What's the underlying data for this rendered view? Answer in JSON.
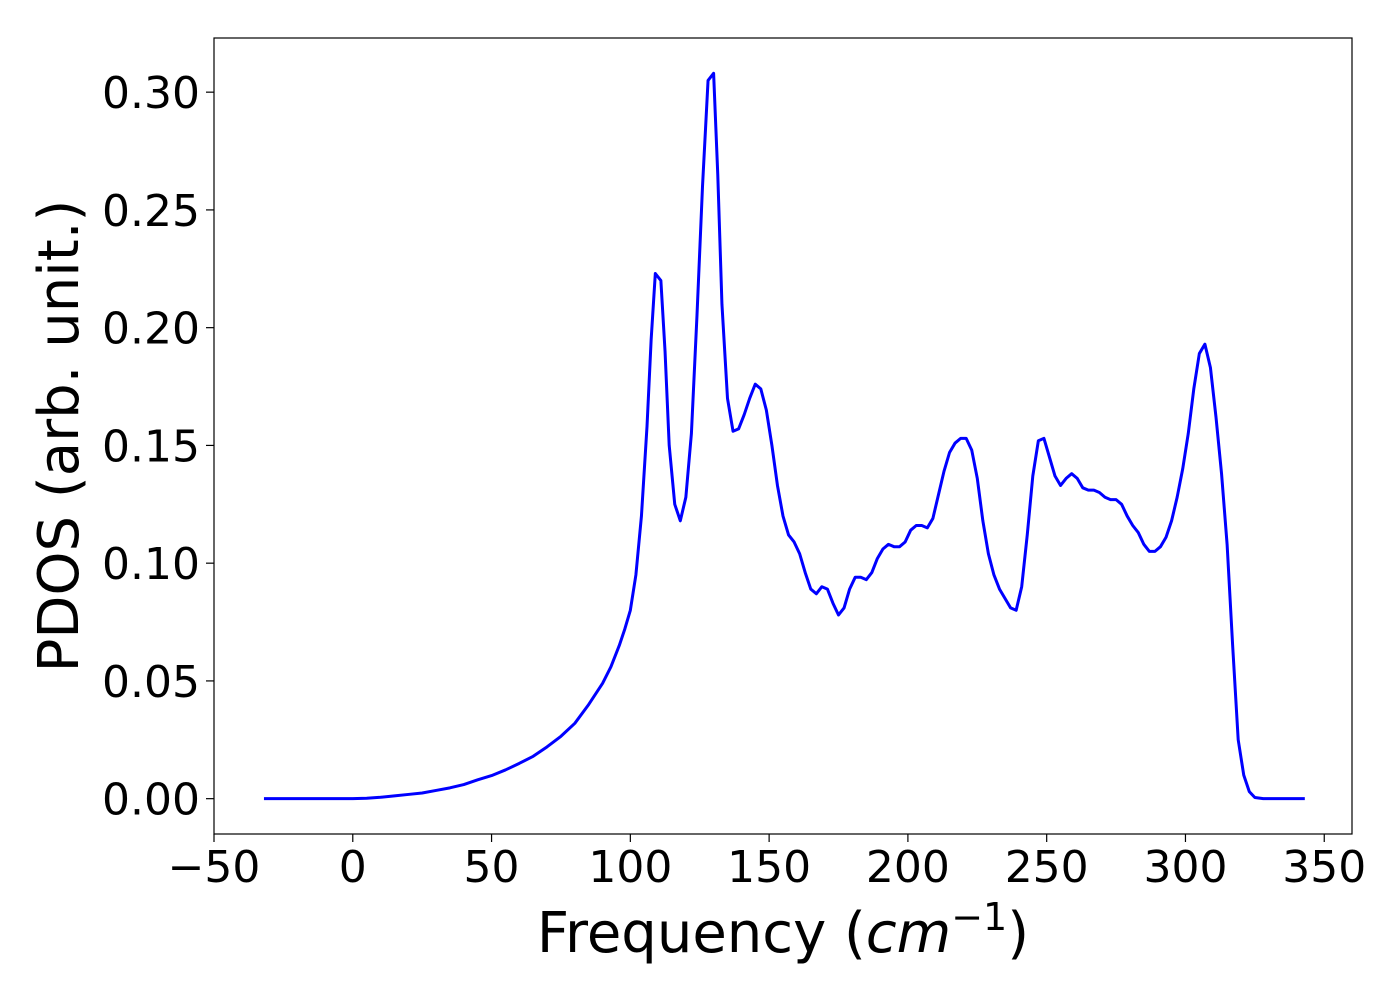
{
  "chart_data": {
    "type": "line",
    "xlabel": {
      "prefix": "Frequency (",
      "var": "cm",
      "sup": "−1",
      "suffix": ")"
    },
    "ylabel": "PDOS (arb. unit.)",
    "xlim": [
      -50,
      360
    ],
    "ylim": [
      -0.015,
      0.323
    ],
    "x_ticks": [
      -50,
      0,
      50,
      100,
      150,
      200,
      250,
      300,
      350
    ],
    "x_tick_labels": [
      "−50",
      "0",
      "50",
      "100",
      "150",
      "200",
      "250",
      "300",
      "350"
    ],
    "y_ticks": [
      0.0,
      0.05,
      0.1,
      0.15,
      0.2,
      0.25,
      0.3
    ],
    "y_tick_labels": [
      "0.00",
      "0.05",
      "0.10",
      "0.15",
      "0.20",
      "0.25",
      "0.30"
    ],
    "grid": false,
    "series": [
      {
        "color": "#0000ff",
        "points": [
          [
            -32,
            0.0
          ],
          [
            -20,
            0.0
          ],
          [
            -10,
            0.0
          ],
          [
            0,
            0.0
          ],
          [
            5,
            0.0002
          ],
          [
            10,
            0.0006
          ],
          [
            15,
            0.0012
          ],
          [
            20,
            0.0018
          ],
          [
            25,
            0.0024
          ],
          [
            30,
            0.0035
          ],
          [
            35,
            0.0046
          ],
          [
            40,
            0.006
          ],
          [
            45,
            0.008
          ],
          [
            50,
            0.0098
          ],
          [
            55,
            0.0122
          ],
          [
            60,
            0.015
          ],
          [
            65,
            0.018
          ],
          [
            70,
            0.022
          ],
          [
            75,
            0.0265
          ],
          [
            80,
            0.032
          ],
          [
            85,
            0.04
          ],
          [
            90,
            0.049
          ],
          [
            93,
            0.056
          ],
          [
            96,
            0.065
          ],
          [
            98,
            0.072
          ],
          [
            100,
            0.08
          ],
          [
            102,
            0.095
          ],
          [
            104,
            0.12
          ],
          [
            106,
            0.158
          ],
          [
            107.5,
            0.195
          ],
          [
            109,
            0.223
          ],
          [
            111,
            0.22
          ],
          [
            112.5,
            0.19
          ],
          [
            114,
            0.15
          ],
          [
            116,
            0.125
          ],
          [
            118,
            0.118
          ],
          [
            120,
            0.128
          ],
          [
            122,
            0.155
          ],
          [
            124,
            0.205
          ],
          [
            126,
            0.26
          ],
          [
            128,
            0.305
          ],
          [
            130,
            0.308
          ],
          [
            131.5,
            0.265
          ],
          [
            133,
            0.21
          ],
          [
            135,
            0.17
          ],
          [
            137,
            0.156
          ],
          [
            139,
            0.157
          ],
          [
            141,
            0.163
          ],
          [
            143,
            0.17
          ],
          [
            145,
            0.176
          ],
          [
            147,
            0.174
          ],
          [
            149,
            0.165
          ],
          [
            151,
            0.15
          ],
          [
            153,
            0.133
          ],
          [
            155,
            0.12
          ],
          [
            157,
            0.112
          ],
          [
            159,
            0.109
          ],
          [
            161,
            0.104
          ],
          [
            163,
            0.096
          ],
          [
            165,
            0.089
          ],
          [
            167,
            0.087
          ],
          [
            169,
            0.09
          ],
          [
            171,
            0.089
          ],
          [
            173,
            0.083
          ],
          [
            175,
            0.078
          ],
          [
            177,
            0.081
          ],
          [
            179,
            0.089
          ],
          [
            181,
            0.094
          ],
          [
            183,
            0.094
          ],
          [
            185,
            0.093
          ],
          [
            187,
            0.096
          ],
          [
            189,
            0.102
          ],
          [
            191,
            0.106
          ],
          [
            193,
            0.108
          ],
          [
            195,
            0.107
          ],
          [
            197,
            0.107
          ],
          [
            199,
            0.109
          ],
          [
            201,
            0.114
          ],
          [
            203,
            0.116
          ],
          [
            205,
            0.116
          ],
          [
            207,
            0.115
          ],
          [
            209,
            0.119
          ],
          [
            211,
            0.129
          ],
          [
            213,
            0.139
          ],
          [
            215,
            0.147
          ],
          [
            217,
            0.151
          ],
          [
            219,
            0.153
          ],
          [
            221,
            0.153
          ],
          [
            223,
            0.148
          ],
          [
            225,
            0.136
          ],
          [
            227,
            0.118
          ],
          [
            229,
            0.104
          ],
          [
            231,
            0.095
          ],
          [
            233,
            0.089
          ],
          [
            235,
            0.085
          ],
          [
            237,
            0.081
          ],
          [
            239,
            0.08
          ],
          [
            241,
            0.09
          ],
          [
            243,
            0.112
          ],
          [
            245,
            0.137
          ],
          [
            247,
            0.152
          ],
          [
            249,
            0.153
          ],
          [
            251,
            0.145
          ],
          [
            253,
            0.137
          ],
          [
            255,
            0.133
          ],
          [
            257,
            0.136
          ],
          [
            259,
            0.138
          ],
          [
            261,
            0.136
          ],
          [
            263,
            0.132
          ],
          [
            265,
            0.131
          ],
          [
            267,
            0.131
          ],
          [
            269,
            0.13
          ],
          [
            271,
            0.128
          ],
          [
            273,
            0.127
          ],
          [
            275,
            0.127
          ],
          [
            277,
            0.125
          ],
          [
            279,
            0.12
          ],
          [
            281,
            0.116
          ],
          [
            283,
            0.113
          ],
          [
            285,
            0.108
          ],
          [
            287,
            0.105
          ],
          [
            289,
            0.105
          ],
          [
            291,
            0.107
          ],
          [
            293,
            0.111
          ],
          [
            295,
            0.118
          ],
          [
            297,
            0.128
          ],
          [
            299,
            0.14
          ],
          [
            301,
            0.155
          ],
          [
            303,
            0.174
          ],
          [
            305,
            0.189
          ],
          [
            307,
            0.193
          ],
          [
            309,
            0.183
          ],
          [
            311,
            0.162
          ],
          [
            313,
            0.138
          ],
          [
            315,
            0.108
          ],
          [
            317,
            0.065
          ],
          [
            319,
            0.025
          ],
          [
            321,
            0.01
          ],
          [
            323,
            0.003
          ],
          [
            325,
            0.0005
          ],
          [
            328,
            0.0
          ],
          [
            335,
            0.0
          ],
          [
            343,
            0.0
          ]
        ]
      }
    ]
  }
}
